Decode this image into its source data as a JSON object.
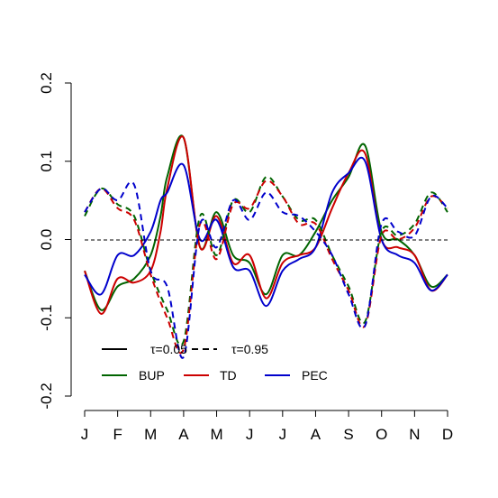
{
  "chart_data": {
    "type": "line",
    "title": "",
    "xlabel": "",
    "ylabel": "",
    "x_categories": [
      "J",
      "F",
      "M",
      "A",
      "M",
      "J",
      "J",
      "A",
      "S",
      "O",
      "N",
      "D"
    ],
    "ylim": [
      -0.2,
      0.2
    ],
    "yticks": [
      -0.2,
      -0.1,
      0.0,
      0.1,
      0.2
    ],
    "ytick_labels": [
      "-0.2",
      "-0.1",
      "0.0",
      "0.1",
      "0.2"
    ],
    "grid": false,
    "reference_line": {
      "y": 0.0,
      "style": "dashed",
      "color": "#000000"
    },
    "linetype_legend": [
      {
        "label": "τ=0.05",
        "dash": "solid"
      },
      {
        "label": "τ=0.95",
        "dash": "dashed"
      }
    ],
    "legend_placement": "bottom-left",
    "series": [
      {
        "name": "BUP",
        "color": "#006400",
        "dash": "solid",
        "x": [
          0,
          0.5,
          1,
          1.5,
          2,
          2.3,
          2.5,
          3,
          3.5,
          4,
          4.5,
          5,
          5.5,
          6,
          6.5,
          7,
          7.5,
          8,
          8.5,
          9,
          9.5,
          10,
          10.5,
          11
        ],
        "values": [
          -0.04,
          -0.09,
          -0.06,
          -0.05,
          -0.02,
          0.03,
          0.08,
          0.13,
          -0.01,
          0.035,
          -0.02,
          -0.03,
          -0.07,
          -0.02,
          -0.02,
          0.01,
          0.05,
          0.08,
          0.12,
          0.01,
          0.0,
          -0.02,
          -0.06,
          -0.045
        ]
      },
      {
        "name": "TD",
        "color": "#cc0000",
        "dash": "solid",
        "x": [
          0,
          0.5,
          1,
          1.5,
          2,
          2.3,
          2.5,
          3,
          3.5,
          4,
          4.5,
          5,
          5.5,
          6,
          6.5,
          7,
          7.5,
          8,
          8.5,
          9,
          9.5,
          10,
          10.5,
          11
        ],
        "values": [
          -0.04,
          -0.095,
          -0.05,
          -0.055,
          -0.04,
          0.01,
          0.065,
          0.13,
          -0.01,
          0.03,
          -0.03,
          -0.02,
          -0.075,
          -0.03,
          -0.02,
          -0.01,
          0.04,
          0.085,
          0.11,
          0.0,
          -0.01,
          -0.02,
          -0.065,
          -0.045
        ]
      },
      {
        "name": "PEC",
        "color": "#0000cc",
        "dash": "solid",
        "x": [
          0,
          0.5,
          1,
          1.5,
          2,
          2.3,
          2.5,
          3,
          3.5,
          4,
          4.5,
          5,
          5.5,
          6,
          6.5,
          7,
          7.5,
          8,
          8.5,
          9,
          9.5,
          10,
          10.5,
          11
        ],
        "values": [
          -0.045,
          -0.07,
          -0.02,
          -0.02,
          0.01,
          0.05,
          0.06,
          0.095,
          0.0,
          0.025,
          -0.035,
          -0.04,
          -0.085,
          -0.04,
          -0.025,
          -0.01,
          0.06,
          0.085,
          0.1,
          0.0,
          -0.02,
          -0.03,
          -0.065,
          -0.045
        ]
      },
      {
        "name": "BUP τ=0.95",
        "color": "#006400",
        "dash": "dashed",
        "x": [
          0,
          0.5,
          1,
          1.5,
          2,
          2.5,
          3,
          3.5,
          4,
          4.5,
          5,
          5.5,
          6,
          6.5,
          7,
          7.5,
          8,
          8.5,
          9,
          9.5,
          10,
          10.5,
          11
        ],
        "values": [
          0.03,
          0.065,
          0.045,
          0.03,
          -0.04,
          -0.09,
          -0.13,
          0.03,
          -0.02,
          0.05,
          0.035,
          0.08,
          0.055,
          0.025,
          0.025,
          -0.02,
          -0.06,
          -0.105,
          0.01,
          0.005,
          0.02,
          0.06,
          0.035
        ]
      },
      {
        "name": "TD τ=0.95",
        "color": "#cc0000",
        "dash": "dashed",
        "x": [
          0,
          0.5,
          1,
          1.5,
          2,
          2.5,
          3,
          3.5,
          4,
          4.5,
          5,
          5.5,
          6,
          6.5,
          7,
          7.5,
          8,
          8.5,
          9,
          9.5,
          10,
          10.5,
          11
        ],
        "values": [
          0.035,
          0.065,
          0.04,
          0.025,
          -0.045,
          -0.1,
          -0.14,
          0.02,
          -0.025,
          0.045,
          0.04,
          0.075,
          0.055,
          0.02,
          0.02,
          -0.025,
          -0.065,
          -0.11,
          0.005,
          0.0,
          0.015,
          0.055,
          0.04
        ]
      },
      {
        "name": "PEC τ=0.95",
        "color": "#0000cc",
        "dash": "dashed",
        "x": [
          0,
          0.5,
          1,
          1.5,
          2,
          2.5,
          3,
          3.5,
          4,
          4.5,
          5,
          5.5,
          6,
          6.5,
          7,
          7.5,
          8,
          8.5,
          9,
          9.5,
          10,
          10.5,
          11
        ],
        "values": [
          0.035,
          0.065,
          0.05,
          0.07,
          -0.04,
          -0.06,
          -0.15,
          0.02,
          -0.01,
          0.05,
          0.025,
          0.06,
          0.035,
          0.03,
          0.01,
          -0.02,
          -0.07,
          -0.11,
          0.02,
          0.01,
          0.005,
          0.055,
          0.04
        ]
      }
    ]
  },
  "legend": {
    "tau_low": "τ=0.05",
    "tau_high": "τ=0.95",
    "bup": "BUP",
    "td": "TD",
    "pec": "PEC"
  }
}
